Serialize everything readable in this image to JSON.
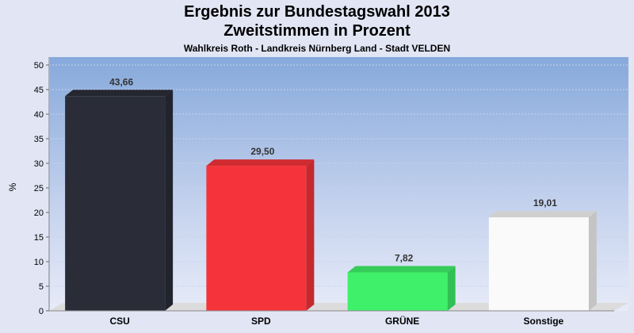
{
  "chart_data": {
    "type": "bar",
    "title": "Ergebnis zur Bundestagswahl 2013",
    "subtitle": "Zweitstimmen in Prozent",
    "subsubtitle": "Wahlkreis Roth - Landkreis Nürnberg Land - Stadt VELDEN",
    "ylabel": "%",
    "xlabel": "",
    "ylim": [
      0,
      50
    ],
    "yticks": [
      "0",
      "5",
      "10",
      "15",
      "20",
      "25",
      "30",
      "35",
      "40",
      "45",
      "50"
    ],
    "grid": true,
    "categories": [
      "CSU",
      "SPD",
      "GRÜNE",
      "Sonstige"
    ],
    "values": [
      43.66,
      29.5,
      7.82,
      19.01
    ],
    "value_labels": [
      "43,66",
      "29,50",
      "7,82",
      "19,01"
    ],
    "colors": [
      "#2a2d38",
      "#f5333a",
      "#3ff06a",
      "#fafafa"
    ]
  }
}
